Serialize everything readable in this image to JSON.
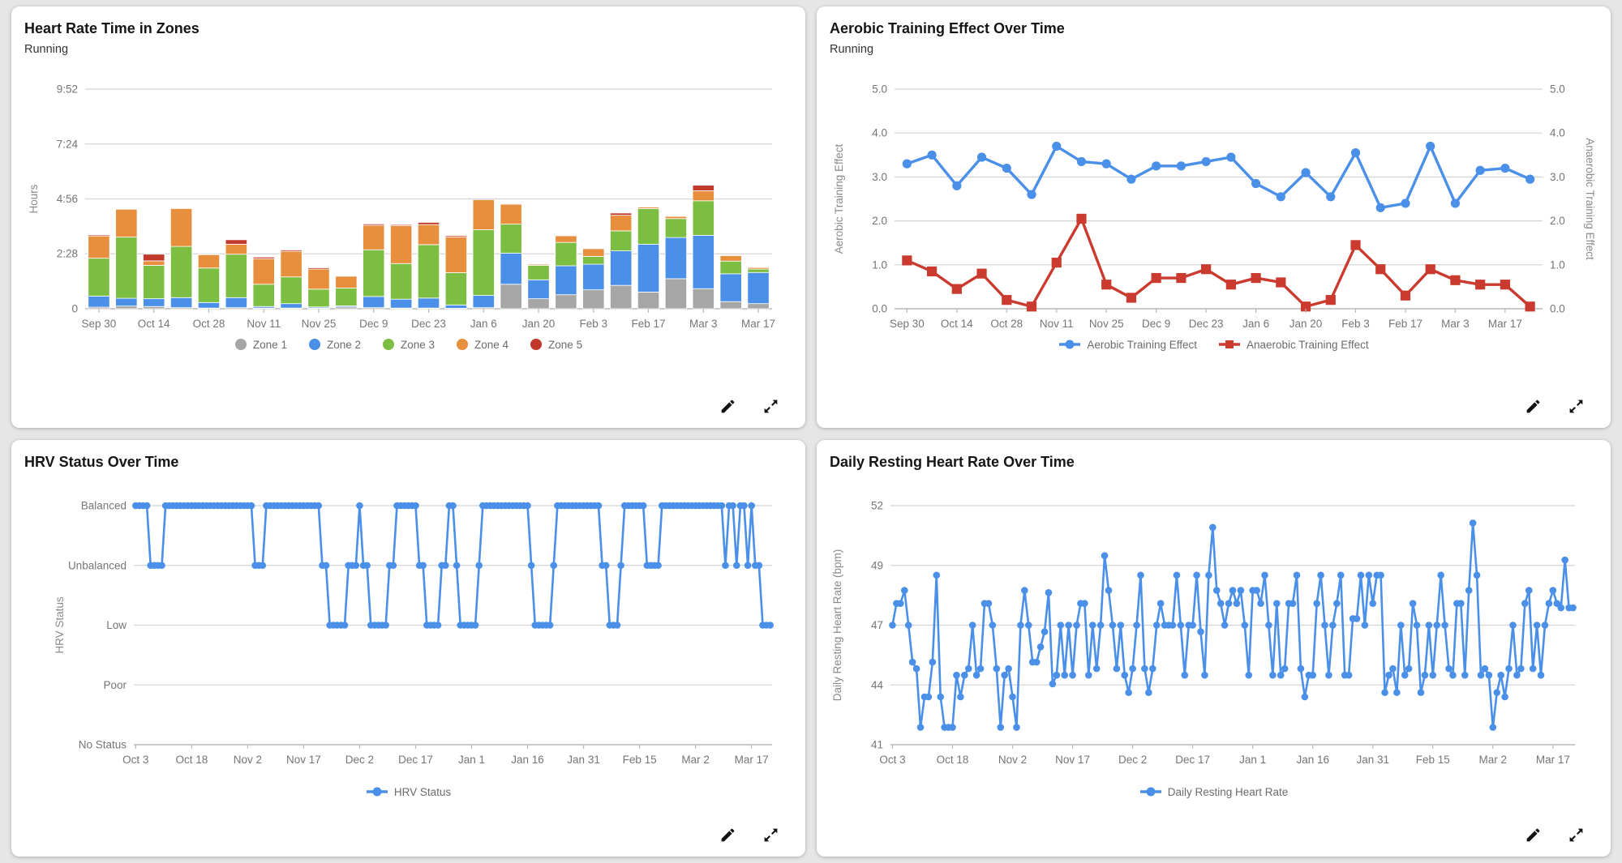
{
  "cards": [
    {
      "title": "Heart Rate Time in Zones",
      "subtitle": "Running"
    },
    {
      "title": "Aerobic Training Effect Over Time",
      "subtitle": "Running"
    },
    {
      "title": "HRV Status Over Time",
      "subtitle": ""
    },
    {
      "title": "Daily Resting Heart Rate Over Time",
      "subtitle": ""
    }
  ],
  "colors": {
    "zone1": "#a6a6a6",
    "zone2": "#4a8fe8",
    "zone3": "#7cbe42",
    "zone4": "#e88f3d",
    "zone5": "#c0392b",
    "aerobic_blue": "#4a8fe8",
    "anaerobic_red": "#cb3a2e",
    "gridline": "#d4d4d4",
    "axis_line": "#b9b9b9",
    "tick_text": "#757575"
  },
  "chart_data": [
    {
      "type": "bar",
      "stacked": true,
      "title": "Heart Rate Time in Zones",
      "subtitle": "Running",
      "ylabel": "Hours",
      "ylim": [
        0,
        9.8667
      ],
      "yticks": [
        {
          "v": 0,
          "label": "0"
        },
        {
          "v": 2.4667,
          "label": "2:28"
        },
        {
          "v": 4.9333,
          "label": "4:56"
        },
        {
          "v": 7.4,
          "label": "7:24"
        },
        {
          "v": 9.8667,
          "label": "9:52"
        }
      ],
      "tick_labels": [
        "Sep 30",
        "Oct 14",
        "Oct 28",
        "Nov 11",
        "Nov 25",
        "Dec 9",
        "Dec 23",
        "Jan 6",
        "Jan 20",
        "Feb 3",
        "Feb 17",
        "Mar 3",
        "Mar 17"
      ],
      "tick_every": 2,
      "legend_marker": "dot",
      "grid": true,
      "legend_position": "bottom",
      "series": [
        {
          "name": "Zone 1",
          "color": "#a6a6a6",
          "values": [
            0.07,
            0.12,
            0.1,
            0.05,
            0.03,
            0.05,
            0.03,
            0.03,
            0.03,
            0.08,
            0.05,
            0.03,
            0.03,
            0.02,
            0.05,
            1.1,
            0.45,
            0.63,
            0.85,
            1.05,
            0.75,
            1.35,
            0.9,
            0.32,
            0.23
          ]
        },
        {
          "name": "Zone 2",
          "color": "#4a8fe8",
          "values": [
            0.5,
            0.35,
            0.35,
            0.45,
            0.25,
            0.45,
            0.07,
            0.2,
            0.05,
            0.05,
            0.5,
            0.4,
            0.45,
            0.15,
            0.55,
            1.4,
            0.85,
            1.3,
            1.15,
            1.55,
            2.15,
            1.85,
            2.4,
            1.25,
            1.4
          ]
        },
        {
          "name": "Zone 3",
          "color": "#7cbe42",
          "values": [
            1.7,
            2.75,
            1.5,
            2.3,
            1.55,
            1.95,
            1.0,
            1.2,
            0.8,
            0.8,
            2.1,
            1.6,
            2.4,
            1.45,
            2.95,
            1.3,
            0.65,
            1.05,
            0.35,
            0.9,
            1.6,
            0.85,
            1.55,
            0.57,
            0.15
          ]
        },
        {
          "name": "Zone 4",
          "color": "#e88f3d",
          "values": [
            1.0,
            1.25,
            0.2,
            1.7,
            0.6,
            0.45,
            1.15,
            1.15,
            0.9,
            0.53,
            1.1,
            1.7,
            0.9,
            1.6,
            1.35,
            0.9,
            0.05,
            0.3,
            0.35,
            0.7,
            0.07,
            0.1,
            0.45,
            0.25,
            0.07
          ]
        },
        {
          "name": "Zone 5",
          "color": "#c0392b",
          "values": [
            0.05,
            0.0,
            0.3,
            0.0,
            0.02,
            0.2,
            0.07,
            0.06,
            0.06,
            0.0,
            0.06,
            0.05,
            0.1,
            0.06,
            0.0,
            0.03,
            0.0,
            0.03,
            0.02,
            0.1,
            0.02,
            0.03,
            0.25,
            0.02,
            0.0
          ]
        }
      ]
    },
    {
      "type": "line",
      "title": "Aerobic Training Effect Over Time",
      "subtitle": "Running",
      "ylabel": "Aerobic Training Effect",
      "ylabel_right": "Anaerobic Training Effect",
      "ylim": [
        0,
        5
      ],
      "yticks": [
        {
          "v": 0,
          "label": "0.0"
        },
        {
          "v": 1,
          "label": "1.0"
        },
        {
          "v": 2,
          "label": "2.0"
        },
        {
          "v": 3,
          "label": "3.0"
        },
        {
          "v": 4,
          "label": "4.0"
        },
        {
          "v": 5,
          "label": "5.0"
        }
      ],
      "tick_labels": [
        "Sep 30",
        "Oct 14",
        "Oct 28",
        "Nov 11",
        "Nov 25",
        "Dec 9",
        "Dec 23",
        "Jan 6",
        "Jan 20",
        "Feb 3",
        "Feb 17",
        "Mar 3",
        "Mar 17"
      ],
      "tick_every": 2,
      "grid": true,
      "legend_position": "bottom",
      "series": [
        {
          "name": "Aerobic Training Effect",
          "color": "#4a8fe8",
          "marker": "circle",
          "values": [
            3.3,
            3.5,
            2.8,
            3.45,
            3.2,
            2.6,
            3.7,
            3.35,
            3.3,
            2.95,
            3.25,
            3.25,
            3.35,
            3.45,
            2.85,
            2.55,
            3.1,
            2.55,
            3.55,
            2.3,
            2.4,
            3.7,
            2.4,
            3.15,
            3.2,
            2.95
          ]
        },
        {
          "name": "Anaerobic Training Effect",
          "color": "#cb3a2e",
          "marker": "square",
          "values": [
            1.1,
            0.85,
            0.45,
            0.8,
            0.2,
            0.05,
            1.05,
            2.05,
            0.55,
            0.25,
            0.7,
            0.7,
            0.9,
            0.55,
            0.7,
            0.6,
            0.05,
            0.2,
            1.45,
            0.9,
            0.3,
            0.9,
            0.65,
            0.55,
            0.55,
            0.05
          ]
        }
      ]
    },
    {
      "type": "line",
      "title": "HRV Status Over Time",
      "ylabel": "HRV Status",
      "categorical_y": [
        "No Status",
        "Poor",
        "Low",
        "Unbalanced",
        "Balanced"
      ],
      "tick_labels": [
        "Oct 3",
        "Oct 18",
        "Nov 2",
        "Nov 17",
        "Dec 2",
        "Dec 17",
        "Jan 1",
        "Jan 16",
        "Jan 31",
        "Feb 15",
        "Mar 2",
        "Mar 17"
      ],
      "tick_interval": 15,
      "grid": true,
      "legend_position": "bottom",
      "series": [
        {
          "name": "HRV Status",
          "color": "#4a8fe8",
          "marker": "circle",
          "runs": [
            [
              "Balanced",
              4
            ],
            [
              "Unbalanced",
              4
            ],
            [
              "Balanced",
              24
            ],
            [
              "Unbalanced",
              3
            ],
            [
              "Balanced",
              15
            ],
            [
              "Unbalanced",
              2
            ],
            [
              "Low",
              5
            ],
            [
              "Unbalanced",
              3
            ],
            [
              "Balanced",
              1
            ],
            [
              "Unbalanced",
              2
            ],
            [
              "Low",
              5
            ],
            [
              "Unbalanced",
              2
            ],
            [
              "Balanced",
              6
            ],
            [
              "Unbalanced",
              2
            ],
            [
              "Low",
              4
            ],
            [
              "Unbalanced",
              2
            ],
            [
              "Balanced",
              2
            ],
            [
              "Unbalanced",
              1
            ],
            [
              "Low",
              5
            ],
            [
              "Unbalanced",
              1
            ],
            [
              "Balanced",
              13
            ],
            [
              "Unbalanced",
              1
            ],
            [
              "Low",
              5
            ],
            [
              "Unbalanced",
              1
            ],
            [
              "Balanced",
              12
            ],
            [
              "Unbalanced",
              2
            ],
            [
              "Low",
              3
            ],
            [
              "Unbalanced",
              1
            ],
            [
              "Balanced",
              6
            ],
            [
              "Unbalanced",
              4
            ],
            [
              "Balanced",
              17
            ],
            [
              "Unbalanced",
              1
            ],
            [
              "Balanced",
              2
            ],
            [
              "Unbalanced",
              1
            ],
            [
              "Balanced",
              2
            ],
            [
              "Unbalanced",
              1
            ],
            [
              "Balanced",
              1
            ],
            [
              "Unbalanced",
              2
            ],
            [
              "Low",
              3
            ]
          ]
        }
      ]
    },
    {
      "type": "line",
      "title": "Daily Resting Heart Rate Over Time",
      "ylabel": "Daily Resting Heart Rate (bpm)",
      "ylim": [
        41,
        52
      ],
      "yticks": [
        {
          "v": 41,
          "label": "41"
        },
        {
          "v": 43.75,
          "label": "44"
        },
        {
          "v": 46.5,
          "label": "47"
        },
        {
          "v": 49.25,
          "label": "49"
        },
        {
          "v": 52,
          "label": "52"
        }
      ],
      "tick_labels": [
        "Oct 3",
        "Oct 18",
        "Nov 2",
        "Nov 17",
        "Dec 2",
        "Dec 17",
        "Jan 1",
        "Jan 16",
        "Jan 31",
        "Feb 15",
        "Mar 2",
        "Mar 17"
      ],
      "tick_interval": 15,
      "grid": true,
      "legend_position": "bottom",
      "series": [
        {
          "name": "Daily Resting Heart Rate",
          "color": "#4a8fe8",
          "marker": "circle",
          "values": [
            46.5,
            47.5,
            47.5,
            48.1,
            46.5,
            44.8,
            44.5,
            41.8,
            43.2,
            43.2,
            44.8,
            48.8,
            43.2,
            41.8,
            41.8,
            41.8,
            44.2,
            43.2,
            44.2,
            44.5,
            46.5,
            44.2,
            44.5,
            47.5,
            47.5,
            46.5,
            44.5,
            41.8,
            44.2,
            44.5,
            43.2,
            41.8,
            46.5,
            48.1,
            46.5,
            44.8,
            44.8,
            45.5,
            46.2,
            48.0,
            43.8,
            44.2,
            46.5,
            44.2,
            46.5,
            44.2,
            46.5,
            47.5,
            47.5,
            44.2,
            46.5,
            44.5,
            46.5,
            49.7,
            48.1,
            46.5,
            44.5,
            46.5,
            44.2,
            43.4,
            44.5,
            46.5,
            48.8,
            44.5,
            43.4,
            44.5,
            46.5,
            47.5,
            46.5,
            46.5,
            46.5,
            48.8,
            46.5,
            44.2,
            46.5,
            46.5,
            48.8,
            46.2,
            44.2,
            48.8,
            51.0,
            48.1,
            47.5,
            46.5,
            47.5,
            48.1,
            47.5,
            48.1,
            46.5,
            44.2,
            48.1,
            48.1,
            47.5,
            48.8,
            46.5,
            44.2,
            47.5,
            44.2,
            44.5,
            47.5,
            47.5,
            48.8,
            44.5,
            43.2,
            44.2,
            44.2,
            47.5,
            48.8,
            46.5,
            44.2,
            46.5,
            47.5,
            48.8,
            44.2,
            44.2,
            46.8,
            46.8,
            48.8,
            46.5,
            48.8,
            47.5,
            48.8,
            48.8,
            43.4,
            44.2,
            44.5,
            43.4,
            46.5,
            44.2,
            44.5,
            47.5,
            46.5,
            43.4,
            44.2,
            46.5,
            44.2,
            46.5,
            48.8,
            46.5,
            44.5,
            44.2,
            47.5,
            47.5,
            44.2,
            48.1,
            51.2,
            48.8,
            44.2,
            44.5,
            44.2,
            41.8,
            43.4,
            44.2,
            43.2,
            44.5,
            46.5,
            44.2,
            44.5,
            47.5,
            48.1,
            44.5,
            46.5,
            44.2,
            46.5,
            47.5,
            48.1,
            47.5,
            47.3,
            49.5,
            47.3,
            47.3
          ]
        }
      ]
    }
  ],
  "card_actions": {
    "edit_icon": "edit-pencil",
    "expand_icon": "expand-arrows"
  }
}
